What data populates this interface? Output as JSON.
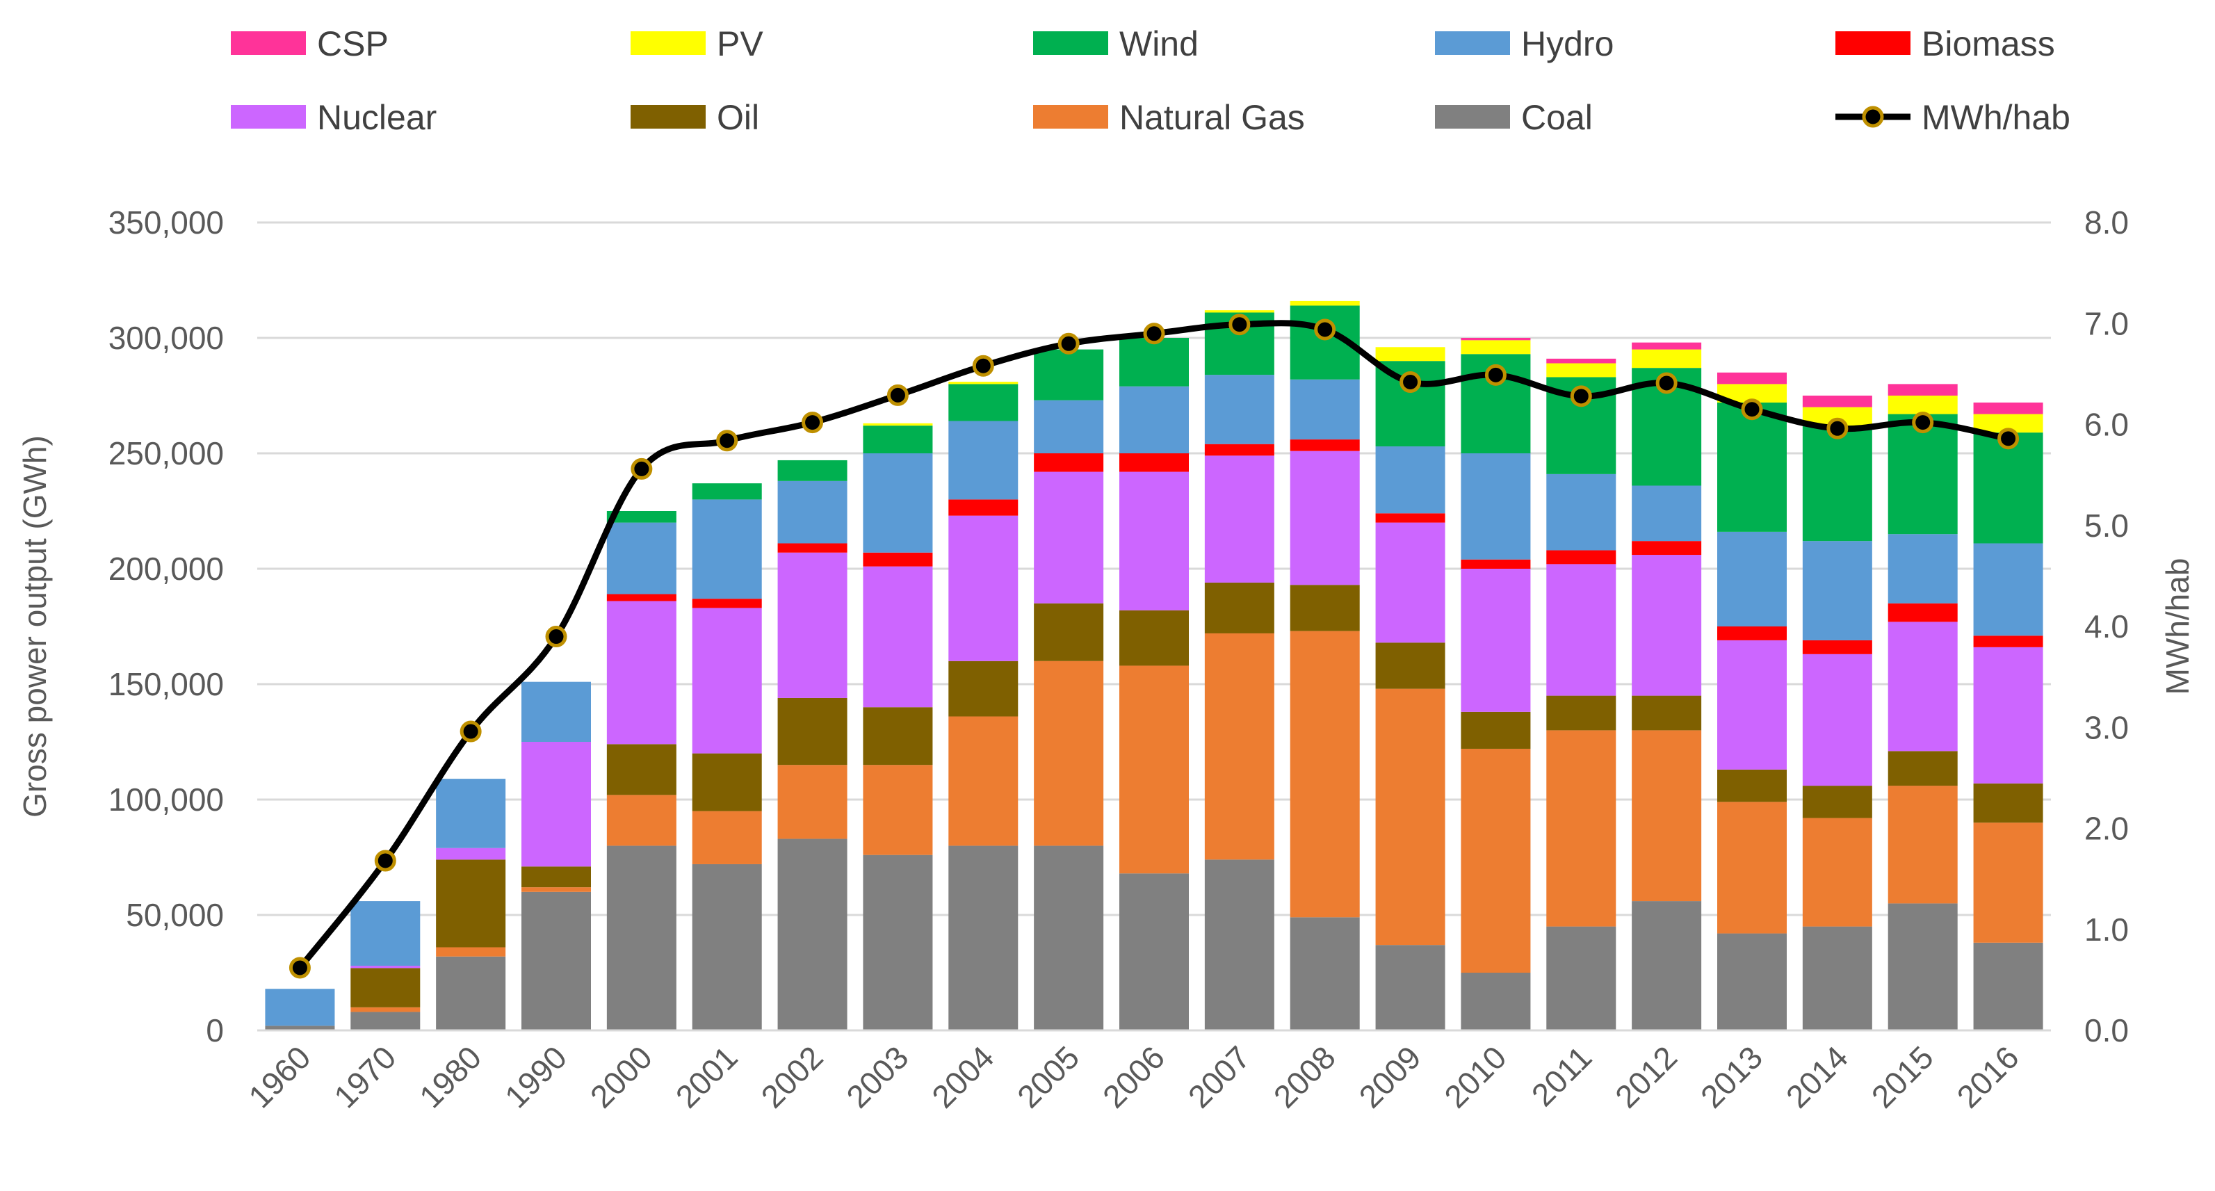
{
  "chart_data": {
    "type": "bar",
    "stacked": true,
    "categories": [
      "1960",
      "1970",
      "1980",
      "1990",
      "2000",
      "2001",
      "2002",
      "2003",
      "2004",
      "2005",
      "2006",
      "2007",
      "2008",
      "2009",
      "2010",
      "2011",
      "2012",
      "2013",
      "2014",
      "2015",
      "2016"
    ],
    "series": [
      {
        "name": "Coal",
        "color": "#808080",
        "values": [
          2000,
          8000,
          32000,
          60000,
          80000,
          72000,
          83000,
          76000,
          80000,
          80000,
          68000,
          74000,
          49000,
          37000,
          25000,
          45000,
          56000,
          42000,
          45000,
          55000,
          38000
        ]
      },
      {
        "name": "Natural Gas",
        "color": "#ED7D31",
        "values": [
          0,
          2000,
          4000,
          2000,
          22000,
          23000,
          32000,
          39000,
          56000,
          80000,
          90000,
          98000,
          124000,
          111000,
          97000,
          85000,
          74000,
          57000,
          47000,
          51000,
          52000
        ]
      },
      {
        "name": "Oil",
        "color": "#7F6000",
        "values": [
          0,
          17000,
          38000,
          9000,
          22000,
          25000,
          29000,
          25000,
          24000,
          25000,
          24000,
          22000,
          20000,
          20000,
          16000,
          15000,
          15000,
          14000,
          14000,
          15000,
          17000
        ]
      },
      {
        "name": "Nuclear",
        "color": "#CC66FF",
        "values": [
          0,
          1000,
          5000,
          54000,
          62000,
          63000,
          63000,
          61000,
          63000,
          57000,
          60000,
          55000,
          58000,
          52000,
          62000,
          57000,
          61000,
          56000,
          57000,
          56000,
          59000
        ]
      },
      {
        "name": "Biomass",
        "color": "#FF0000",
        "values": [
          0,
          0,
          0,
          0,
          3000,
          4000,
          4000,
          6000,
          7000,
          8000,
          8000,
          5000,
          5000,
          4000,
          4000,
          6000,
          6000,
          6000,
          6000,
          8000,
          5000
        ]
      },
      {
        "name": "Hydro",
        "color": "#5B9BD5",
        "values": [
          16000,
          28000,
          30000,
          26000,
          31000,
          43000,
          27000,
          43000,
          34000,
          23000,
          29000,
          30000,
          26000,
          29000,
          46000,
          33000,
          24000,
          41000,
          43000,
          30000,
          40000
        ]
      },
      {
        "name": "Wind",
        "color": "#00B050",
        "values": [
          0,
          0,
          0,
          0,
          5000,
          7000,
          9000,
          12000,
          16000,
          22000,
          21000,
          27000,
          32000,
          37000,
          43000,
          42000,
          51000,
          56000,
          50000,
          52000,
          48000
        ]
      },
      {
        "name": "PV",
        "color": "#FFFF00",
        "values": [
          0,
          0,
          0,
          0,
          0,
          0,
          0,
          1000,
          1000,
          0,
          0,
          1000,
          2000,
          6000,
          6000,
          6000,
          8000,
          8000,
          8000,
          8000,
          8000
        ]
      },
      {
        "name": "CSP",
        "color": "#FF3399",
        "values": [
          0,
          0,
          0,
          0,
          0,
          0,
          0,
          0,
          0,
          0,
          0,
          0,
          0,
          0,
          1000,
          2000,
          3000,
          5000,
          5000,
          5000,
          5000
        ]
      }
    ],
    "line_series": {
      "name": "MWh/hab",
      "color": "#000000",
      "marker_color": "#BF9000",
      "axis": "right",
      "values": [
        0.62,
        1.68,
        2.96,
        3.9,
        5.56,
        5.84,
        6.02,
        6.29,
        6.58,
        6.8,
        6.9,
        6.99,
        6.94,
        6.42,
        6.49,
        6.28,
        6.41,
        6.15,
        5.96,
        6.02,
        5.86
      ]
    },
    "y_left": {
      "label": "Gross power output (GWh)",
      "ylim": [
        0,
        350000
      ],
      "ticks": [
        "0",
        "50,000",
        "100,000",
        "150,000",
        "200,000",
        "250,000",
        "300,000",
        "350,000"
      ]
    },
    "y_right": {
      "label": "MWh/hab",
      "ylim": [
        0,
        8
      ],
      "ticks": [
        "0.0",
        "1.0",
        "2.0",
        "3.0",
        "4.0",
        "5.0",
        "6.0",
        "7.0",
        "8.0"
      ]
    },
    "legend_order": [
      "CSP",
      "PV",
      "Wind",
      "Hydro",
      "Biomass",
      "Nuclear",
      "Oil",
      "Natural Gas",
      "Coal",
      "MWh/hab"
    ],
    "legend_position": "top",
    "grid": true,
    "gridline_color": "#D9D9D9"
  }
}
